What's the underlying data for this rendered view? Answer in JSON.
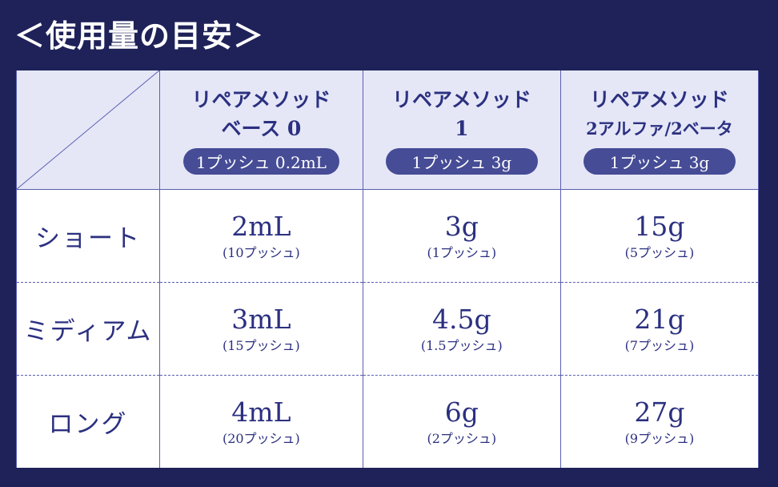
{
  "title": "＜使用量の目安＞",
  "columns": [
    {
      "name_line1": "リペアメソッド",
      "name_line2": "ベース 0",
      "pill": "1プッシュ 0.2mL"
    },
    {
      "name_line1": "リペアメソッド",
      "name_line2": "1",
      "pill": "1プッシュ 3g"
    },
    {
      "name_line1": "リペアメソッド",
      "name_line2": "2アルファ/2ベータ",
      "pill": "1プッシュ 3g"
    }
  ],
  "rows": [
    {
      "label": "ショート",
      "cells": [
        {
          "amount": "2mL",
          "pushes": "(10プッシュ)"
        },
        {
          "amount": "3g",
          "pushes": "(1プッシュ)"
        },
        {
          "amount": "15g",
          "pushes": "(5プッシュ)"
        }
      ]
    },
    {
      "label": "ミディアム",
      "cells": [
        {
          "amount": "3mL",
          "pushes": "(15プッシュ)"
        },
        {
          "amount": "4.5g",
          "pushes": "(1.5プッシュ)"
        },
        {
          "amount": "21g",
          "pushes": "(7プッシュ)"
        }
      ]
    },
    {
      "label": "ロング",
      "cells": [
        {
          "amount": "4mL",
          "pushes": "(20プッシュ)"
        },
        {
          "amount": "6g",
          "pushes": "(2プッシュ)"
        },
        {
          "amount": "27g",
          "pushes": "(9プッシュ)"
        }
      ]
    }
  ]
}
